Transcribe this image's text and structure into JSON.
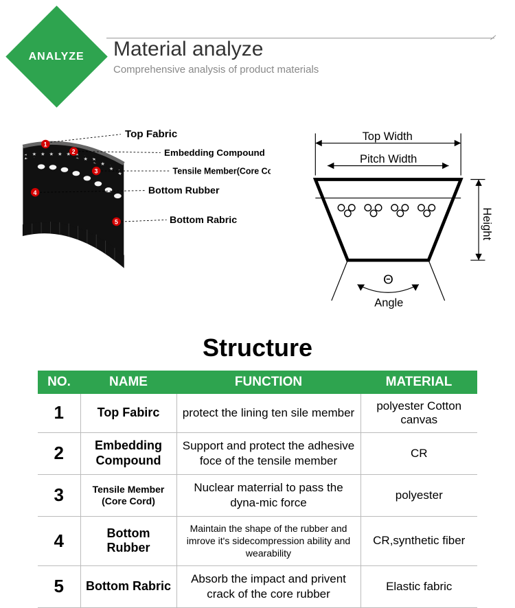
{
  "header": {
    "badge": "ANALYZE",
    "title": "Material analyze",
    "subtitle": "Comprehensive analysis of product materials"
  },
  "colors": {
    "green": "#2ea44f",
    "red_marker": "#d40000",
    "text_dark": "#333333",
    "text_muted": "#888888",
    "border": "#bbbbbb"
  },
  "belt_labels": [
    {
      "n": "1",
      "text": "Top Fabric"
    },
    {
      "n": "2",
      "text": "Embedding Compound"
    },
    {
      "n": "3",
      "text": "Tensile Member(Core Cord)"
    },
    {
      "n": "4",
      "text": "Bottom Rubber"
    },
    {
      "n": "5",
      "text": "Bottom Rabric"
    }
  ],
  "cross_labels": {
    "top_width": "Top Width",
    "pitch_width": "Pitch Width",
    "height": "Height",
    "angle_sym": "Θ",
    "angle": "Angle"
  },
  "structure_title": "Structure",
  "table": {
    "columns": [
      "NO.",
      "NAME",
      "FUNCTION",
      "MATERIAL"
    ],
    "rows": [
      {
        "no": "1",
        "name": "Top Fabirc",
        "name_small": false,
        "func": "protect the lining ten sile member",
        "func_small": false,
        "mat": "polyester Cotton canvas"
      },
      {
        "no": "2",
        "name": "Embedding Compound",
        "name_small": false,
        "func": "Support and protect the adhesive foce of the tensile member",
        "func_small": false,
        "mat": "CR"
      },
      {
        "no": "3",
        "name": "Tensile Member (Core Cord)",
        "name_small": true,
        "func": "Nuclear materrial to pass the dyna-mic force",
        "func_small": false,
        "mat": "polyester"
      },
      {
        "no": "4",
        "name": "Bottom Rubber",
        "name_small": false,
        "func": "Maintain the shape of the rubber and imrove it's sidecompression ability and wearability",
        "func_small": true,
        "mat": "CR,synthetic fiber"
      },
      {
        "no": "5",
        "name": "Bottom Rabric",
        "name_small": false,
        "func": "Absorb the impact and privent crack of the core rubber",
        "func_small": false,
        "mat": "Elastic fabric"
      }
    ]
  }
}
